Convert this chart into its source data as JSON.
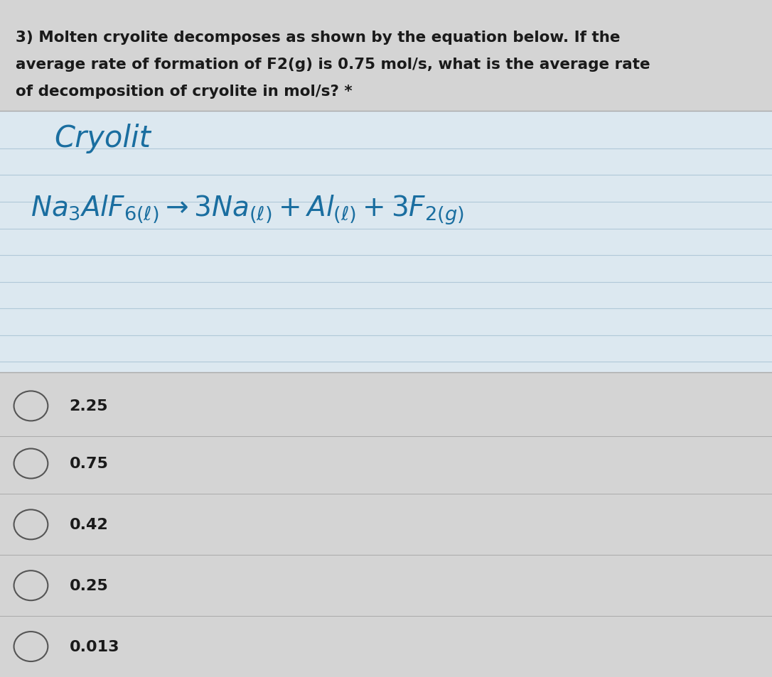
{
  "background_color": "#d4d4d4",
  "question_text_line1": "3) Molten cryolite decomposes as shown by the equation below. If the",
  "question_text_line2": "average rate of formation of F2(g) is 0.75 mol/s, what is the average rate",
  "question_text_line3": "of decomposition of cryolite in mol/s? *",
  "question_font_size": 15.5,
  "question_text_color": "#1a1a1a",
  "notebook_bg": "#dce8f0",
  "notebook_line_color": "#b0c8d8",
  "handwritten_color": "#1a6ea0",
  "choices": [
    "2.25",
    "0.75",
    "0.42",
    "0.25",
    "0.013"
  ],
  "choice_font_size": 15,
  "choice_text_color": "#1a1a1a",
  "circle_color": "#555555",
  "separator_line_color": "#aaaaaa"
}
